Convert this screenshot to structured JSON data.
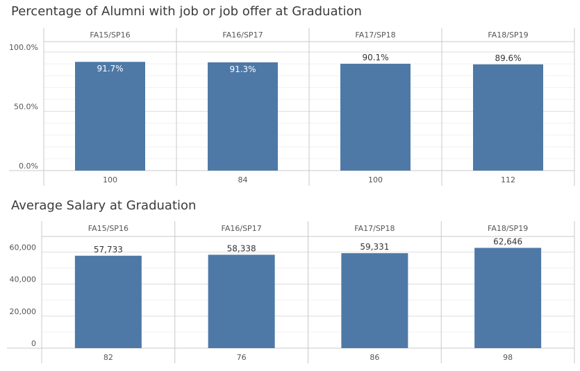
{
  "colors": {
    "bar": "#4e79a7",
    "grid_major": "#dedede",
    "grid_minor": "#f0f0f0",
    "frame": "#c8c8c8",
    "text": "#555555",
    "label_dark": "#333333",
    "label_light": "#ffffff"
  },
  "chart_data": [
    {
      "type": "bar",
      "title": "Percentage of Alumni with job or job offer at Graduation",
      "categories": [
        "FA15/SP16",
        "FA16/SP17",
        "FA17/SP18",
        "FA18/SP19"
      ],
      "values": [
        91.7,
        91.3,
        90.1,
        89.6
      ],
      "value_labels": [
        "91.7%",
        "91.3%",
        "90.1%",
        "89.6%"
      ],
      "counts": [
        "100",
        "84",
        "100",
        "112"
      ],
      "yticks": [
        0,
        50,
        100
      ],
      "ytick_labels": [
        "0.0%",
        "50.0%",
        "100.0%"
      ],
      "ylim": [
        0,
        100
      ],
      "grid": true
    },
    {
      "type": "bar",
      "title": "Average Salary at Graduation",
      "categories": [
        "FA15/SP16",
        "FA16/SP17",
        "FA17/SP18",
        "FA18/SP19"
      ],
      "values": [
        57733,
        58338,
        59331,
        62646
      ],
      "value_labels": [
        "57,733",
        "58,338",
        "59,331",
        "62,646"
      ],
      "counts": [
        "82",
        "76",
        "86",
        "98"
      ],
      "yticks": [
        0,
        20000,
        40000,
        60000
      ],
      "ytick_labels": [
        "0",
        "20,000",
        "40,000",
        "60,000"
      ],
      "ylim": [
        0,
        65000
      ],
      "grid": true
    }
  ]
}
